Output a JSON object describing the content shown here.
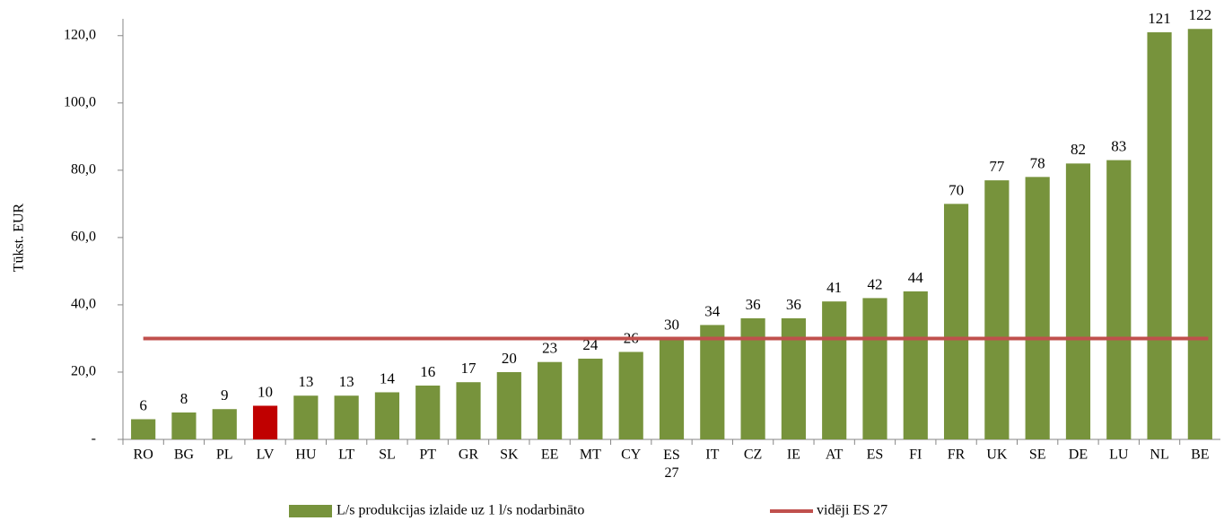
{
  "chart_data": {
    "type": "bar",
    "y_label": "Tūkst. EUR",
    "categories": [
      "RO",
      "BG",
      "PL",
      "LV",
      "HU",
      "LT",
      "SL",
      "PT",
      "GR",
      "SK",
      "EE",
      "MT",
      "CY",
      "ES 27",
      "IT",
      "CZ",
      "IE",
      "AT",
      "ES",
      "FI",
      "FR",
      "UK",
      "SE",
      "DE",
      "LU",
      "NL",
      "BE"
    ],
    "series": [
      {
        "name": "L/s produkcijas izlaide uz 1 l/s nodarbināto",
        "color": "#77933c",
        "colors": [
          "#77933c",
          "#77933c",
          "#77933c",
          "#c00000",
          "#77933c",
          "#77933c",
          "#77933c",
          "#77933c",
          "#77933c",
          "#77933c",
          "#77933c",
          "#77933c",
          "#77933c",
          "#77933c",
          "#77933c",
          "#77933c",
          "#77933c",
          "#77933c",
          "#77933c",
          "#77933c",
          "#77933c",
          "#77933c",
          "#77933c",
          "#77933c",
          "#77933c",
          "#77933c",
          "#77933c"
        ],
        "values": [
          6,
          8,
          9,
          10,
          13,
          13,
          14,
          16,
          17,
          20,
          23,
          24,
          26,
          30,
          34,
          36,
          36,
          41,
          42,
          44,
          70,
          77,
          78,
          82,
          83,
          121,
          122
        ]
      }
    ],
    "reference_line": {
      "name": "vidēji ES 27",
      "color": "#c0504d",
      "value": 30
    },
    "ylim": [
      0,
      125
    ],
    "yticks": [
      {
        "value": 0,
        "label": "-"
      },
      {
        "value": 20,
        "label": "20,0"
      },
      {
        "value": 40,
        "label": "40,0"
      },
      {
        "value": 60,
        "label": "60,0"
      },
      {
        "value": 80,
        "label": "80,0"
      },
      {
        "value": 100,
        "label": "100,0"
      },
      {
        "value": 120,
        "label": "120,0"
      }
    ],
    "grid": false
  }
}
